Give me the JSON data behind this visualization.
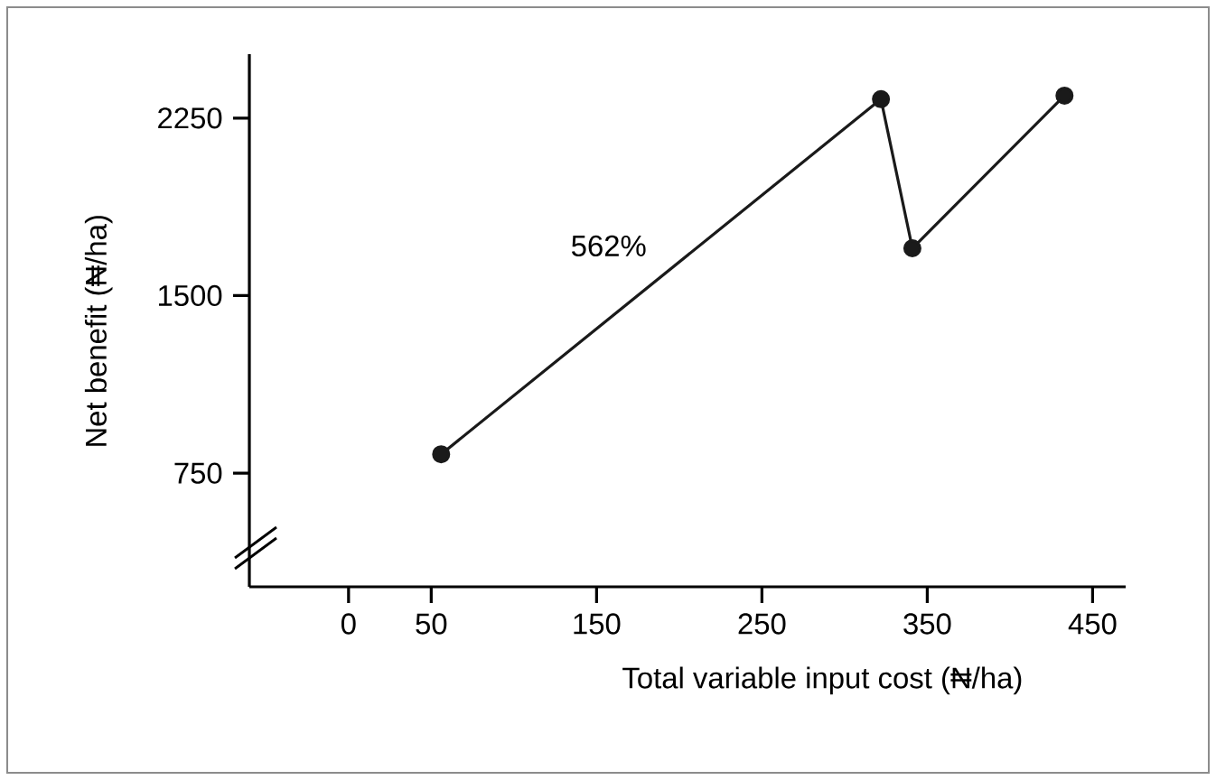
{
  "chart_data": {
    "type": "line",
    "xlabel": "Total variable input cost (₦/ha)",
    "ylabel": "Net benefit (₦/ha)",
    "x": [
      56,
      322,
      341,
      433
    ],
    "series": [
      {
        "color": "#1a1a1a",
        "values": [
          830,
          2330,
          1700,
          2345
        ]
      }
    ],
    "xlim": [
      -60,
      470
    ],
    "xticks": [
      0,
      50,
      150,
      250,
      350,
      450
    ],
    "ylim": [
      270,
      2520
    ],
    "yticks": [
      750,
      1500,
      2250
    ],
    "marker": "circle",
    "line_style": "solid",
    "grid": false,
    "annotations": [
      "562%"
    ]
  }
}
